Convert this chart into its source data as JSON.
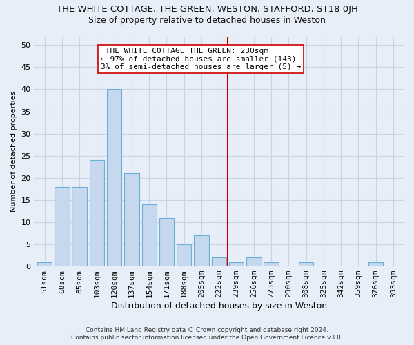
{
  "title": "THE WHITE COTTAGE, THE GREEN, WESTON, STAFFORD, ST18 0JH",
  "subtitle": "Size of property relative to detached houses in Weston",
  "xlabel": "Distribution of detached houses by size in Weston",
  "ylabel": "Number of detached properties",
  "footer_line1": "Contains HM Land Registry data © Crown copyright and database right 2024.",
  "footer_line2": "Contains public sector information licensed under the Open Government Licence v3.0.",
  "bar_labels": [
    "51sqm",
    "68sqm",
    "85sqm",
    "103sqm",
    "120sqm",
    "137sqm",
    "154sqm",
    "171sqm",
    "188sqm",
    "205sqm",
    "222sqm",
    "239sqm",
    "256sqm",
    "273sqm",
    "290sqm",
    "308sqm",
    "325sqm",
    "342sqm",
    "359sqm",
    "376sqm",
    "393sqm"
  ],
  "bar_values": [
    1,
    18,
    18,
    24,
    40,
    21,
    14,
    11,
    5,
    7,
    2,
    1,
    2,
    1,
    0,
    1,
    0,
    0,
    0,
    1,
    0
  ],
  "bar_color": "#c5d8ee",
  "bar_edge_color": "#6baed6",
  "grid_color": "#c8d4e4",
  "background_color": "#e8eef8",
  "vline_x_index": 11,
  "vline_color": "#cc0000",
  "annotation_text": " THE WHITE COTTAGE THE GREEN: 230sqm\n← 97% of detached houses are smaller (143)\n3% of semi-detached houses are larger (5) →",
  "annotation_box_color": "#ffffff",
  "annotation_box_edge": "#cc0000",
  "ylim": [
    0,
    52
  ],
  "yticks": [
    0,
    5,
    10,
    15,
    20,
    25,
    30,
    35,
    40,
    45,
    50
  ],
  "title_fontsize": 9.5,
  "subtitle_fontsize": 9,
  "xlabel_fontsize": 9,
  "ylabel_fontsize": 8,
  "tick_fontsize": 8,
  "annot_fontsize": 8,
  "footer_fontsize": 6.5
}
